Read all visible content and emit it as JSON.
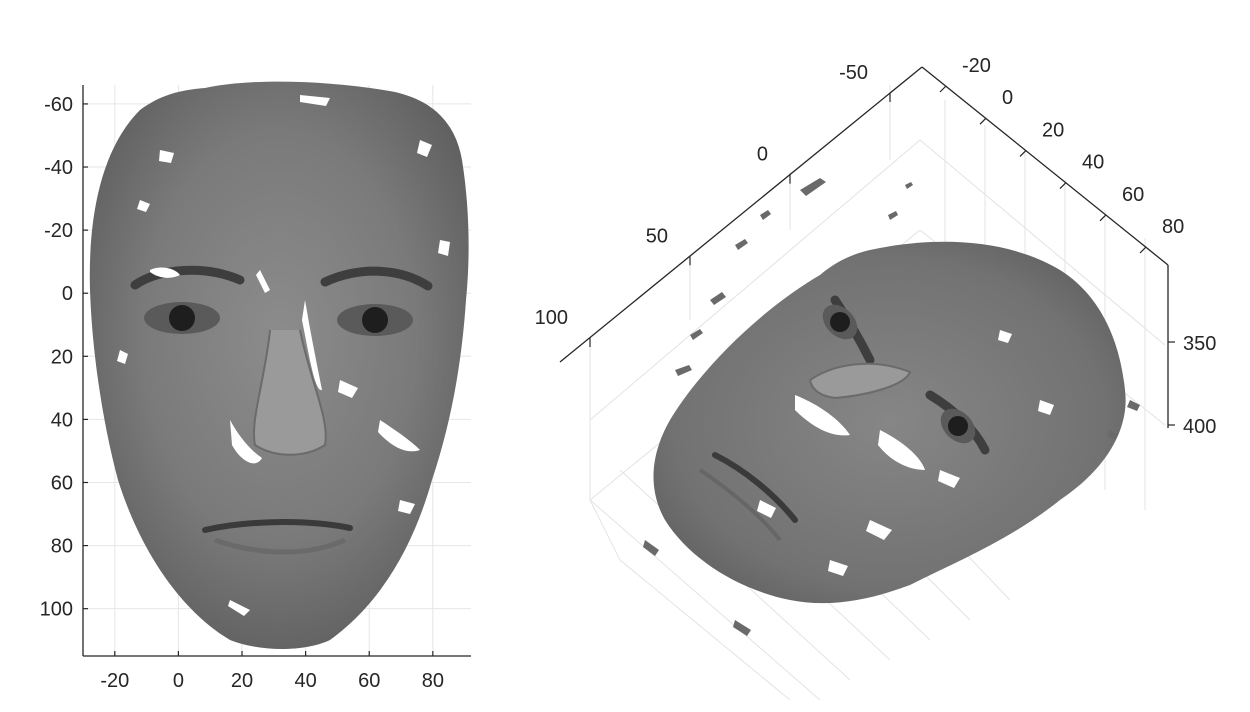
{
  "chart_data": [
    {
      "type": "surface",
      "view": "2d",
      "xlim": [
        -30,
        92
      ],
      "ylim": [
        -66,
        115
      ],
      "y_reversed": true,
      "grid": true,
      "xticks": [
        "-20",
        "0",
        "20",
        "40",
        "60",
        "80"
      ],
      "xtick_values": [
        -20,
        0,
        20,
        40,
        60,
        80
      ],
      "yticks": [
        "-60",
        "-40",
        "-20",
        "0",
        "20",
        "40",
        "60",
        "80",
        "100"
      ],
      "ytick_values": [
        -60,
        -40,
        -20,
        0,
        20,
        40,
        60,
        80,
        100
      ],
      "colormap": "gray",
      "content": "textured 3D face point cloud, frontal view"
    },
    {
      "type": "surface",
      "view": "3d",
      "grid": true,
      "axis1_ticks": [
        "-50",
        "0",
        "50",
        "100"
      ],
      "axis1_values": [
        -50,
        0,
        50,
        100
      ],
      "axis2_ticks": [
        "-20",
        "0",
        "20",
        "40",
        "60",
        "80"
      ],
      "axis2_values": [
        -20,
        0,
        20,
        40,
        60,
        80
      ],
      "axis3_ticks": [
        "350",
        "400"
      ],
      "axis3_values": [
        350,
        400
      ],
      "colormap": "gray",
      "content": "textured 3D face point cloud, rotated oblique view"
    }
  ]
}
